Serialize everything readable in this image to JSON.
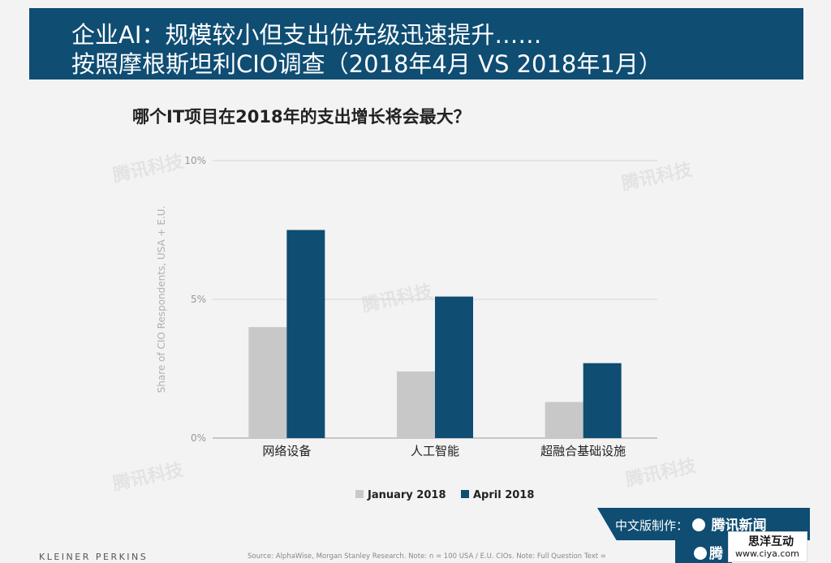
{
  "header": {
    "line1": "企业AI：规模较小但支出优先级迅速提升……",
    "line2": "按照摩根斯坦利CIO调查（2018年4月 VS 2018年1月）"
  },
  "question": "哪个IT项目在2018年的支出增长将会最大？",
  "chart_data": {
    "type": "bar",
    "title": "哪个IT项目在2018年的支出增长将会最大？",
    "categories": [
      "网络设备",
      "人工智能",
      "超融合基础设施"
    ],
    "series": [
      {
        "name": "January 2018",
        "values": [
          4.0,
          2.4,
          1.3
        ],
        "color": "#c8c8c8"
      },
      {
        "name": "April 2018",
        "values": [
          7.5,
          5.1,
          2.7
        ],
        "color": "#0f4d73"
      }
    ],
    "ylabel": "Share of CIO Respondents, USA + E.U.",
    "ylim": [
      0,
      10
    ],
    "yticks": [
      0,
      5,
      10
    ],
    "ytick_labels": [
      "0%",
      "5%",
      "10%"
    ],
    "grid": true,
    "legend_position": "bottom"
  },
  "footer": {
    "brand": "KLEINER PERKINS",
    "source": "Source: AlphaWise, Morgan Stanley Research. Note: n = 100 USA / E.U. CIOs. Note: Full Question Text ="
  },
  "badge": {
    "label": "中文版制作：",
    "brand": "腾讯新闻",
    "brand2": "腾"
  },
  "watermark": {
    "title": "思洋互动",
    "url": "www.ciya.com",
    "text": "腾讯科技"
  }
}
